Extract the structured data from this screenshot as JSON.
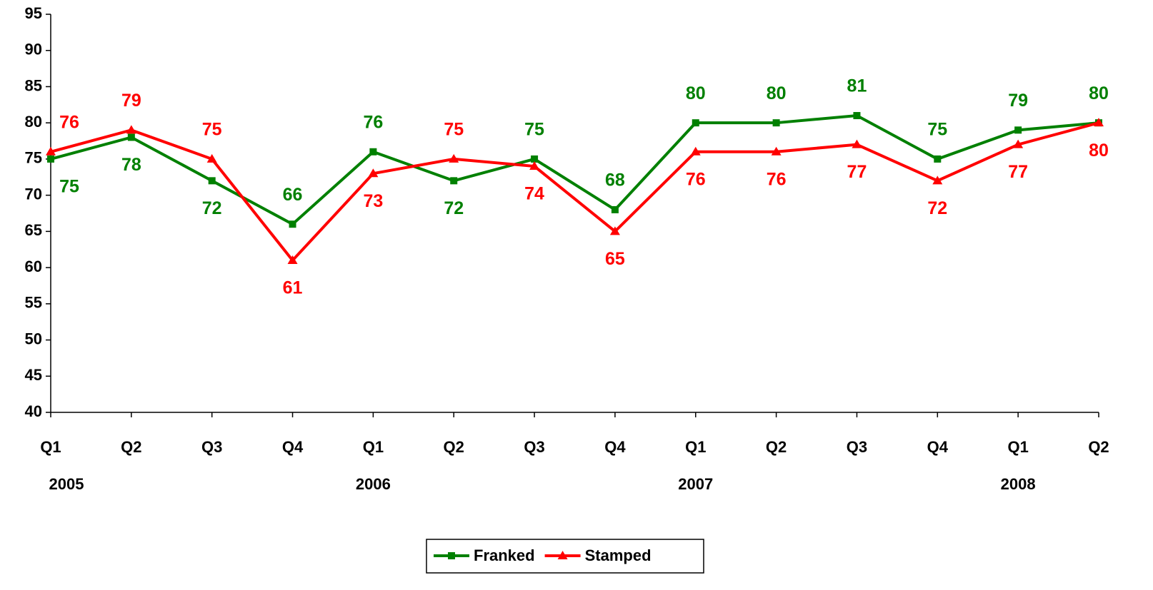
{
  "chart_data": {
    "type": "line",
    "categories": [
      "Q1",
      "Q2",
      "Q3",
      "Q4",
      "Q1",
      "Q2",
      "Q3",
      "Q4",
      "Q1",
      "Q2",
      "Q3",
      "Q4",
      "Q1",
      "Q2"
    ],
    "x_group_labels": [
      "2005",
      null,
      null,
      null,
      "2006",
      null,
      null,
      null,
      "2007",
      null,
      null,
      null,
      "2008",
      null
    ],
    "series": [
      {
        "name": "Franked",
        "color": "#008000",
        "marker": "square",
        "values": [
          75,
          78,
          72,
          66,
          76,
          72,
          75,
          68,
          80,
          80,
          81,
          75,
          79,
          80
        ]
      },
      {
        "name": "Stamped",
        "color": "#ff0000",
        "marker": "triangle",
        "values": [
          76,
          79,
          75,
          61,
          73,
          75,
          74,
          65,
          76,
          76,
          77,
          72,
          77,
          80
        ]
      }
    ],
    "ylim": [
      40,
      95
    ],
    "yticks": [
      40,
      45,
      50,
      55,
      60,
      65,
      70,
      75,
      80,
      85,
      90,
      95
    ],
    "grid": false,
    "legend": "bottom"
  }
}
